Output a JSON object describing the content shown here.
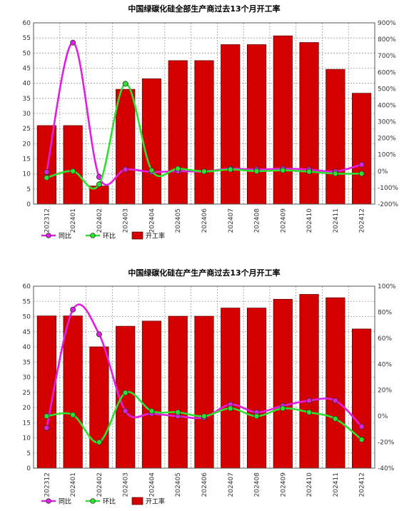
{
  "chart_data": [
    {
      "type": "bar",
      "title": "中国绿碳化硅全部生产商过去13个月开工率",
      "categories": [
        "202312",
        "202401",
        "202402",
        "202403",
        "202404",
        "202405",
        "202406",
        "202407",
        "202408",
        "202409",
        "202410",
        "202411",
        "202412"
      ],
      "series": [
        {
          "name": "开工率",
          "kind": "bar",
          "axis": "left",
          "color": "#d40000",
          "values": [
            26,
            26,
            6,
            38,
            41.5,
            47.5,
            47.5,
            52.8,
            52.8,
            55.7,
            53.5,
            44.6,
            36.7
          ]
        },
        {
          "name": "同比",
          "kind": "line",
          "axis": "right",
          "color": "#e020e0",
          "values": [
            -5,
            780,
            -35,
            10,
            -5,
            0,
            -2,
            15,
            10,
            15,
            10,
            -2,
            40
          ]
        },
        {
          "name": "环比",
          "kind": "line",
          "axis": "right",
          "color": "#30e030",
          "values": [
            -40,
            0,
            -80,
            530,
            5,
            15,
            -2,
            10,
            0,
            5,
            -3,
            -15,
            -15
          ]
        }
      ],
      "ylim": [
        0,
        60
      ],
      "y_ticks": [
        0,
        5,
        10,
        15,
        20,
        25,
        30,
        35,
        40,
        45,
        50,
        55,
        60
      ],
      "y2lim": [
        -200,
        900
      ],
      "y2_ticks": [
        "-200%",
        "-100%",
        "0%",
        "100%",
        "200%",
        "300%",
        "400%",
        "500%",
        "600%",
        "700%",
        "800%",
        "900%"
      ],
      "grid": true,
      "legend": "bottom-left"
    },
    {
      "type": "bar",
      "title": "中国绿碳化硅在产生产商过去13个月开工率",
      "categories": [
        "202312",
        "202401",
        "202402",
        "202403",
        "202404",
        "202405",
        "202406",
        "202407",
        "202408",
        "202409",
        "202410",
        "202411",
        "202412"
      ],
      "series": [
        {
          "name": "开工率",
          "kind": "bar",
          "axis": "left",
          "color": "#d40000",
          "values": [
            50.2,
            50.2,
            40,
            46.8,
            48.5,
            50.1,
            50.1,
            52.8,
            52.8,
            55.7,
            57.3,
            56.2,
            45.9
          ]
        },
        {
          "name": "同比",
          "kind": "line",
          "axis": "right",
          "color": "#e020e0",
          "values": [
            -9,
            82,
            63,
            4,
            2,
            0,
            -1,
            9,
            3,
            8,
            12,
            12,
            -8
          ]
        },
        {
          "name": "环比",
          "kind": "line",
          "axis": "right",
          "color": "#30e030",
          "values": [
            0,
            1,
            -20,
            18,
            4,
            3,
            0,
            6,
            0,
            6,
            3,
            -2,
            -18
          ]
        }
      ],
      "ylim": [
        0,
        60
      ],
      "y_ticks": [
        0,
        5,
        10,
        15,
        20,
        25,
        30,
        35,
        40,
        45,
        50,
        55,
        60
      ],
      "y2lim": [
        -40,
        100
      ],
      "y2_ticks": [
        "-40%",
        "-20%",
        "0%",
        "20%",
        "40%",
        "60%",
        "80%",
        "100%"
      ],
      "grid": true,
      "legend": "bottom-left"
    }
  ]
}
